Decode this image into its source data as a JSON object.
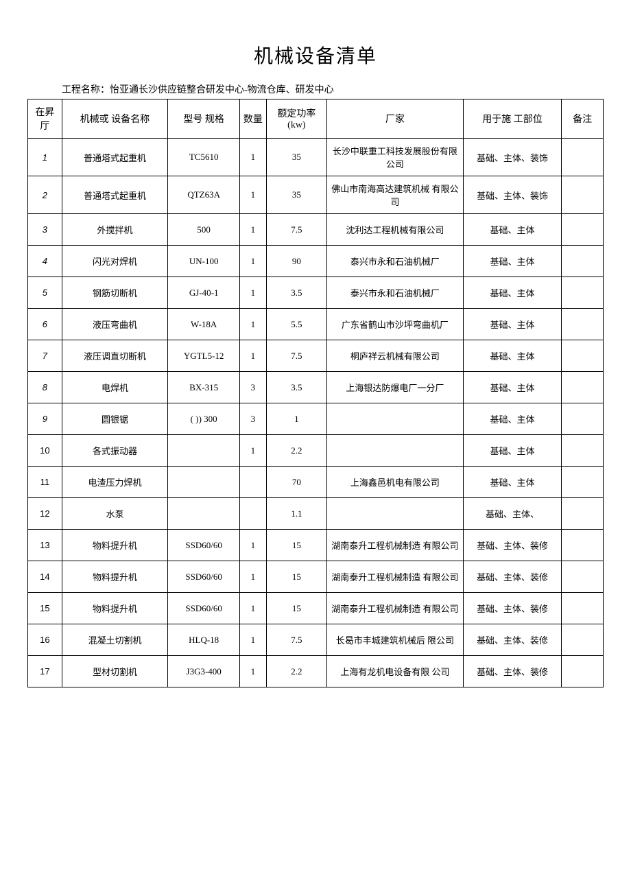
{
  "title": "机械设备清单",
  "subtitle": "工程名称：怡亚通长沙供应链整合研发中心-物流仓库、研发中心",
  "columns": {
    "seq": "在昇 厅",
    "name": "机械或  设备名称",
    "model": "型号  规格",
    "qty": "数量",
    "power": "额定功率(kw)",
    "maker": "厂家",
    "site": "用于施  工部位",
    "remark": "备注"
  },
  "rows": [
    {
      "seq": "1",
      "name": "普通塔式起重机",
      "model": "TC5610",
      "qty": "1",
      "power": "35",
      "maker": "长沙中联重工科技发展股份有限公司",
      "site": "基础、主体、装饰",
      "remark": ""
    },
    {
      "seq": "2",
      "name": "普通塔式起重机",
      "model": "QTZ63A",
      "qty": "1",
      "power": "35",
      "maker": "佛山市南海高达建筑机械  有限公司",
      "site": "基础、主体、装饰",
      "remark": ""
    },
    {
      "seq": "3",
      "name": "外搅拌机",
      "model": "500",
      "qty": "1",
      "power": "7.5",
      "maker": "沈利达工程机械有限公司",
      "site": "基础、主体",
      "remark": ""
    },
    {
      "seq": "4",
      "name": "闪光对焊机",
      "model": "UN-100",
      "qty": "1",
      "power": "90",
      "maker": "泰兴市永和石油机械厂",
      "site": "基础、主体",
      "remark": ""
    },
    {
      "seq": "5",
      "name": "钢筋切断机",
      "model": "GJ-40-1",
      "qty": "1",
      "power": "3.5",
      "maker": "泰兴市永和石油机械厂",
      "site": "基础、主体",
      "remark": ""
    },
    {
      "seq": "6",
      "name": "液压弯曲机",
      "model": "W-18A",
      "qty": "1",
      "power": "5.5",
      "maker": "广东省鹤山市沙坪弯曲机厂",
      "site": "基础、主体",
      "remark": ""
    },
    {
      "seq": "7",
      "name": "液压调直切断机",
      "model": "YGTL5-12",
      "qty": "1",
      "power": "7.5",
      "maker": "桐庐祥云机械有限公司",
      "site": "基础、主体",
      "remark": ""
    },
    {
      "seq": "8",
      "name": "电焊机",
      "model": "BX-315",
      "qty": "3",
      "power": "3.5",
      "maker": "上海银达防爆电厂一分厂",
      "site": "基础、主体",
      "remark": ""
    },
    {
      "seq": "9",
      "name": "圆银锯",
      "model": "( )) 300",
      "qty": "3",
      "power": "1",
      "maker": "",
      "site": "基础、主体",
      "remark": ""
    },
    {
      "seq": "10",
      "name": "各式振动器",
      "model": "",
      "qty": "1",
      "power": "2.2",
      "maker": "",
      "site": "基础、主体",
      "remark": ""
    },
    {
      "seq": "11",
      "name": "电渣压力焊机",
      "model": "",
      "qty": "",
      "power": "70",
      "maker": "上海鑫邑机电有限公司",
      "site": "基础、主体",
      "remark": ""
    },
    {
      "seq": "12",
      "name": "水泵",
      "model": "",
      "qty": "",
      "power": "1.1",
      "maker": "",
      "site": "基础、主体、",
      "remark": ""
    },
    {
      "seq": "13",
      "name": "物料提升机",
      "model": "SSD60/60",
      "qty": "1",
      "power": "15",
      "maker": "湖南泰升工程机械制造  有限公司",
      "site": "基础、主体、装修",
      "remark": ""
    },
    {
      "seq": "14",
      "name": "物料提升机",
      "model": "SSD60/60",
      "qty": "1",
      "power": "15",
      "maker": "湖南泰升工程机械制造  有限公司",
      "site": "基础、主体、装修",
      "remark": ""
    },
    {
      "seq": "15",
      "name": "物料提升机",
      "model": "SSD60/60",
      "qty": "1",
      "power": "15",
      "maker": "湖南泰升工程机械制造  有限公司",
      "site": "基础、主体、装修",
      "remark": ""
    },
    {
      "seq": "16",
      "name": "混凝土切割机",
      "model": "HLQ-18",
      "qty": "1",
      "power": "7.5",
      "maker": "长曷市丰城建筑机械后  限公司",
      "site": "基础、主体、装修",
      "remark": ""
    },
    {
      "seq": "17",
      "name": "型材切割机",
      "model": "J3G3-400",
      "qty": "1",
      "power": "2.2",
      "maker": "上海有龙机电设备有限  公司",
      "site": "基础、主体、装修",
      "remark": ""
    }
  ]
}
